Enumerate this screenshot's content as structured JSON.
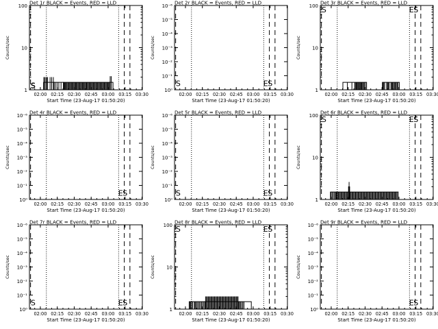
{
  "figure": {
    "xtitle": "Start Time (23-Aug-17 01:50:20)",
    "ytitle": "Counts/sec"
  },
  "time_ticks": [
    "02:00",
    "02:15",
    "02:30",
    "02:45",
    "03:00",
    "03:15",
    "03:30"
  ],
  "markers": {
    "s_letter": "S",
    "e_letter": "E"
  },
  "chart_data": [
    {
      "type": "line",
      "title": "Det 1r BLACK = Events, RED = LLD",
      "xlabel": "Start Time (23-Aug-17 01:50:20)",
      "ylabel": "Counts/sec",
      "scale": "log",
      "xlim": [
        0,
        100
      ],
      "ylim": [
        1,
        100
      ],
      "ytick_labels": [
        {
          "v": 1,
          "t": "1"
        },
        {
          "v": 10,
          "t": "10"
        },
        {
          "v": 100,
          "t": "100"
        }
      ],
      "minor_ticks": true,
      "xticks_minutes": [
        9.67,
        24.67,
        39.67,
        54.67,
        69.67,
        84.67,
        99.67
      ],
      "vlines_dotted": [
        15,
        79
      ],
      "vlines_dashed": [
        1,
        84,
        89
      ],
      "letters": [
        {
          "text": "S",
          "x": 0.5,
          "y": 0.95
        },
        {
          "text": "S",
          "x": 0.5,
          "y": 1.1
        }
      ],
      "series": [
        {
          "blocks": [
            {
              "x0": 12.5,
              "x1": 21.8,
              "y": 1.5,
              "spikes": [
                12.8,
                13.4,
                14.6,
                15.2,
                16.1,
                18.3,
                19.7,
                21.2
              ],
              "spike_y": 2
            },
            {
              "x0": 21.8,
              "x1": 30,
              "y": 1.5,
              "spikes": [
                23,
                24.5,
                26,
                28
              ],
              "spike_y": 1.5
            },
            {
              "x0": 30,
              "x1": 71,
              "y": 1.5,
              "spikes": [
                30.5,
                31.2,
                31.9,
                32.6,
                33.3,
                34.1,
                34.9,
                35.6,
                36.4,
                37.1,
                37.8,
                38.6,
                39.4,
                40.1,
                40.9,
                41.6,
                42.3,
                43.1,
                43.8,
                44.6,
                45.4,
                46.1,
                46.9,
                47.6,
                48.4,
                49.1,
                49.9,
                50.6,
                51.4,
                52.1,
                52.9,
                53.6,
                54.4,
                55.1,
                55.9,
                56.6,
                57.4,
                58.1,
                58.9,
                59.6,
                60.4,
                61.1,
                61.9,
                62.6,
                63.4,
                64.1,
                64.9,
                65.6,
                66.4,
                67.1,
                67.9,
                68.6,
                69.4,
                70.1
              ],
              "spike_y": 1.5
            },
            {
              "x0": 71,
              "x1": 74,
              "y": 1.5,
              "spikes": [
                71.5,
                72.5
              ],
              "spike_y": 2.1
            }
          ]
        }
      ]
    },
    {
      "type": "line",
      "title": "Det 2r BLACK = Events, RED = LLD",
      "xlabel": "Start Time (23-Aug-17 01:50:20)",
      "ylabel": "Counts/sec",
      "scale": "log",
      "xlim": [
        0,
        100
      ],
      "ylim": [
        1,
        1e-06
      ],
      "ytick_labels": [
        {
          "v": 1,
          "t": "10⁰"
        },
        {
          "v": 0.1,
          "t": "10⁻¹"
        },
        {
          "v": 0.01,
          "t": "10⁻²"
        },
        {
          "v": 0.001,
          "t": "10⁻³"
        },
        {
          "v": 0.0001,
          "t": "10⁻⁴"
        },
        {
          "v": 1e-05,
          "t": "10⁻⁵"
        },
        {
          "v": 1e-06,
          "t": "10⁻⁶"
        }
      ],
      "minor_ticks": false,
      "xticks_minutes": [
        9.67,
        24.67,
        39.67,
        54.67,
        69.67,
        84.67,
        99.67
      ],
      "vlines_dotted": [
        15,
        79
      ],
      "vlines_dashed": [
        1,
        84,
        89
      ],
      "letters": [
        {
          "text": "S",
          "x": 0.5,
          "y": 0.55
        },
        {
          "text": "E",
          "x": 78,
          "y": 0.55
        },
        {
          "text": "S",
          "x": 82,
          "y": 0.55
        }
      ],
      "series": []
    },
    {
      "type": "line",
      "title": "Det 3r BLACK = Events, RED = LLD",
      "xlabel": "Start Time (23-Aug-17 01:50:20)",
      "ylabel": "Counts/sec",
      "scale": "log",
      "xlim": [
        0,
        100
      ],
      "ylim": [
        1,
        100
      ],
      "ytick_labels": [
        {
          "v": 1,
          "t": "1"
        },
        {
          "v": 10,
          "t": "10"
        },
        {
          "v": 100,
          "t": "100"
        }
      ],
      "minor_ticks": true,
      "xticks_minutes": [
        9.67,
        24.67,
        39.67,
        54.67,
        69.67,
        84.67,
        99.67
      ],
      "vlines_dotted": [
        15,
        79
      ],
      "vlines_dashed": [
        1,
        84,
        89
      ],
      "letters": [
        {
          "text": "S",
          "x": 0.5,
          "y": 80
        },
        {
          "text": "E",
          "x": 78,
          "y": 80
        },
        {
          "text": "S",
          "x": 82,
          "y": 80
        }
      ],
      "series": [
        {
          "blocks": [
            {
              "x0": 20,
              "x1": 41,
              "y": 1.5,
              "spikes": [
                24,
                28,
                30.5,
                31,
                31.8,
                32.5,
                33.2,
                33.9,
                34.6,
                35.3,
                36,
                36.7,
                37.5,
                38.2,
                39,
                40
              ],
              "spike_y": 1.5
            },
            {
              "x0": 55,
              "x1": 70,
              "y": 1.5,
              "spikes": [
                55.5,
                56.2,
                57,
                58.8,
                59.5,
                60.2,
                61,
                62.5,
                63.3,
                64,
                64.8,
                65.6,
                66.4,
                67.2,
                68,
                68.8
              ],
              "spike_y": 1.5
            }
          ]
        }
      ]
    },
    {
      "type": "line",
      "title": "Det 4r BLACK = Events, RED = LLD",
      "xlabel": "Start Time (23-Aug-17 01:50:20)",
      "ylabel": "Counts/sec",
      "scale": "log",
      "xlim": [
        0,
        100
      ],
      "ylim": [
        1,
        1e-06
      ],
      "ytick_labels": [
        {
          "v": 1,
          "t": "10⁰"
        },
        {
          "v": 0.1,
          "t": "10⁻¹"
        },
        {
          "v": 0.01,
          "t": "10⁻²"
        },
        {
          "v": 0.001,
          "t": "10⁻³"
        },
        {
          "v": 0.0001,
          "t": "10⁻⁴"
        },
        {
          "v": 1e-05,
          "t": "10⁻⁵"
        },
        {
          "v": 1e-06,
          "t": "10⁻⁶"
        }
      ],
      "minor_ticks": false,
      "xticks_minutes": [
        9.67,
        24.67,
        39.67,
        54.67,
        69.67,
        84.67,
        99.67
      ],
      "vlines_dotted": [
        15,
        79
      ],
      "vlines_dashed": [
        1,
        84,
        89
      ],
      "letters": [
        {
          "text": "E",
          "x": 78,
          "y": 0.55
        },
        {
          "text": "S",
          "x": 82,
          "y": 0.55
        }
      ],
      "series": []
    },
    {
      "type": "line",
      "title": "Det 5r BLACK = Events, RED = LLD",
      "xlabel": "Start Time (23-Aug-17 01:50:20)",
      "ylabel": "Counts/sec",
      "scale": "log",
      "xlim": [
        0,
        100
      ],
      "ylim": [
        1,
        1e-06
      ],
      "ytick_labels": [
        {
          "v": 1,
          "t": "10⁰"
        },
        {
          "v": 0.1,
          "t": "10⁻¹"
        },
        {
          "v": 0.01,
          "t": "10⁻²"
        },
        {
          "v": 0.001,
          "t": "10⁻³"
        },
        {
          "v": 0.0001,
          "t": "10⁻⁴"
        },
        {
          "v": 1e-05,
          "t": "10⁻⁵"
        },
        {
          "v": 1e-06,
          "t": "10⁻⁶"
        }
      ],
      "minor_ticks": false,
      "xticks_minutes": [
        9.67,
        24.67,
        39.67,
        54.67,
        69.67,
        84.67,
        99.67
      ],
      "vlines_dotted": [
        15,
        79
      ],
      "vlines_dashed": [
        1,
        84,
        89
      ],
      "letters": [
        {
          "text": "S",
          "x": 0.5,
          "y": 0.55
        },
        {
          "text": "E",
          "x": 78,
          "y": 0.55
        },
        {
          "text": "S",
          "x": 82,
          "y": 0.55
        }
      ],
      "series": []
    },
    {
      "type": "line",
      "title": "Det 6r BLACK = Events, RED = LLD",
      "xlabel": "Start Time (23-Aug-17 01:50:20)",
      "ylabel": "Counts/sec",
      "scale": "log",
      "xlim": [
        0,
        100
      ],
      "ylim": [
        1,
        100
      ],
      "ytick_labels": [
        {
          "v": 1,
          "t": "1"
        },
        {
          "v": 10,
          "t": "10"
        },
        {
          "v": 100,
          "t": "100"
        }
      ],
      "minor_ticks": true,
      "xticks_minutes": [
        9.67,
        24.67,
        39.67,
        54.67,
        69.67,
        84.67,
        99.67
      ],
      "vlines_dotted": [
        15,
        79
      ],
      "vlines_dashed": [
        1,
        84,
        89
      ],
      "letters": [
        {
          "text": "S",
          "x": 0.5,
          "y": 80
        },
        {
          "text": "E",
          "x": 78,
          "y": 80
        },
        {
          "text": "S",
          "x": 82,
          "y": 80
        }
      ],
      "series": [
        {
          "blocks": [
            {
              "x0": 9,
              "x1": 14,
              "y": 1.5,
              "spikes": [
                9.5,
                10.5,
                11.5,
                12.5,
                13.5
              ],
              "spike_y": 1.5
            },
            {
              "x0": 14,
              "x1": 69,
              "y": 1.5,
              "spikes": [
                14.5,
                15.3,
                16,
                16.8,
                17.6,
                18.4,
                19.2,
                20,
                20.8,
                21.6,
                22.4,
                23.2,
                24,
                24.8,
                25.6,
                26.4,
                27.2,
                28,
                28.8,
                29.6,
                30.4,
                31.2,
                32,
                32.8,
                33.6,
                34.4,
                35.2,
                36,
                36.8,
                37.6,
                38.4,
                39.2,
                40,
                40.8,
                41.6,
                42.4,
                43.2,
                44,
                44.8,
                45.6,
                46.4,
                47.2,
                48,
                48.8,
                49.6,
                50.4,
                51.2,
                52,
                52.8,
                53.6,
                54.4,
                55.2,
                56,
                56.8,
                57.6,
                58.4,
                59.2,
                60,
                60.8,
                61.6,
                62.4,
                63.2,
                64,
                64.8,
                65.6,
                66.4,
                67.2,
                68
              ],
              "spike_y": 1.5
            },
            {
              "x0": 25,
              "x1": 26,
              "y": 2,
              "spikes": [
                25.5
              ],
              "spike_y": 2.6
            }
          ]
        }
      ]
    },
    {
      "type": "line",
      "title": "Det 7r BLACK = Events, RED = LLD",
      "xlabel": "Start Time (23-Aug-17 01:50:20)",
      "ylabel": "Counts/sec",
      "scale": "log",
      "xlim": [
        0,
        100
      ],
      "ylim": [
        1,
        1e-06
      ],
      "ytick_labels": [
        {
          "v": 1,
          "t": "10⁰"
        },
        {
          "v": 0.1,
          "t": "10⁻¹"
        },
        {
          "v": 0.01,
          "t": "10⁻²"
        },
        {
          "v": 0.001,
          "t": "10⁻³"
        },
        {
          "v": 0.0001,
          "t": "10⁻⁴"
        },
        {
          "v": 1e-05,
          "t": "10⁻⁵"
        },
        {
          "v": 1e-06,
          "t": "10⁻⁶"
        }
      ],
      "minor_ticks": false,
      "xticks_minutes": [
        9.67,
        24.67,
        39.67,
        54.67,
        69.67,
        84.67,
        99.67
      ],
      "vlines_dotted": [
        15,
        79
      ],
      "vlines_dashed": [
        1,
        84,
        89
      ],
      "letters": [
        {
          "text": "S",
          "x": 0.5,
          "y": 0.55
        },
        {
          "text": "E",
          "x": 78,
          "y": 0.55
        },
        {
          "text": "S",
          "x": 82,
          "y": 0.55
        }
      ],
      "series": []
    },
    {
      "type": "line",
      "title": "Det 8r BLACK = Events, RED = LLD",
      "xlabel": "Start Time (23-Aug-17 01:50:20)",
      "ylabel": "Counts/sec",
      "scale": "log",
      "xlim": [
        0,
        100
      ],
      "ylim": [
        1,
        100
      ],
      "ytick_labels": [
        {
          "v": 1,
          "t": "1"
        },
        {
          "v": 10,
          "t": "10"
        },
        {
          "v": 100,
          "t": "100"
        }
      ],
      "minor_ticks": true,
      "xticks_minutes": [
        9.67,
        24.67,
        39.67,
        54.67,
        69.67,
        84.67,
        99.67
      ],
      "vlines_dotted": [
        15,
        79
      ],
      "vlines_dashed": [
        1,
        84,
        89
      ],
      "letters": [
        {
          "text": "S",
          "x": 0.5,
          "y": 80
        },
        {
          "text": "E",
          "x": 78,
          "y": 80
        },
        {
          "text": "S",
          "x": 82,
          "y": 80
        }
      ],
      "series": [
        {
          "blocks": [
            {
              "x0": 13,
              "x1": 27,
              "y": 1.5,
              "spikes": [
                13.5,
                14.3,
                15.1,
                16,
                17.5,
                18.2,
                19,
                20,
                21,
                22,
                23,
                24,
                25,
                26
              ],
              "spike_y": 1.5
            },
            {
              "x0": 27,
              "x1": 57,
              "y": 1.5,
              "spikes": [
                27.5,
                28.3,
                29.1,
                29.9,
                30.7,
                31.5,
                32.3,
                33.1,
                33.9,
                34.7,
                35.5,
                36.3,
                37.1,
                37.9,
                38.7,
                39.5,
                40.3,
                41.1,
                41.9,
                42.7,
                43.5,
                44.3,
                45.1,
                45.9,
                46.7,
                47.5,
                48.3,
                49.1,
                49.9,
                50.7,
                51.5,
                52.3,
                53.1,
                53.9,
                54.7,
                55.5,
                56.3
              ],
              "spike_y": 2
            },
            {
              "x0": 57,
              "x1": 68,
              "y": 1.5,
              "spikes": [
                57.5,
                58.5,
                59.5,
                60.5,
                61.5
              ],
              "spike_y": 1.5
            }
          ]
        }
      ]
    },
    {
      "type": "line",
      "title": "Det 9r BLACK = Events, RED = LLD",
      "xlabel": "Start Time (23-Aug-17 01:50:20)",
      "ylabel": "Counts/sec",
      "scale": "log",
      "xlim": [
        0,
        100
      ],
      "ylim": [
        1,
        1e-06
      ],
      "ytick_labels": [
        {
          "v": 1,
          "t": "10⁰"
        },
        {
          "v": 0.1,
          "t": "10⁻¹"
        },
        {
          "v": 0.01,
          "t": "10⁻²"
        },
        {
          "v": 0.001,
          "t": "10⁻³"
        },
        {
          "v": 0.0001,
          "t": "10⁻⁴"
        },
        {
          "v": 1e-05,
          "t": "10⁻⁵"
        },
        {
          "v": 1e-06,
          "t": "10⁻⁶"
        }
      ],
      "minor_ticks": false,
      "xticks_minutes": [
        9.67,
        24.67,
        39.67,
        54.67,
        69.67,
        84.67,
        99.67
      ],
      "vlines_dotted": [
        15,
        79
      ],
      "vlines_dashed": [
        1,
        84,
        89
      ],
      "letters": [
        {
          "text": "E",
          "x": 78,
          "y": 0.55
        },
        {
          "text": "S",
          "x": 82,
          "y": 0.55
        }
      ],
      "series": []
    }
  ]
}
